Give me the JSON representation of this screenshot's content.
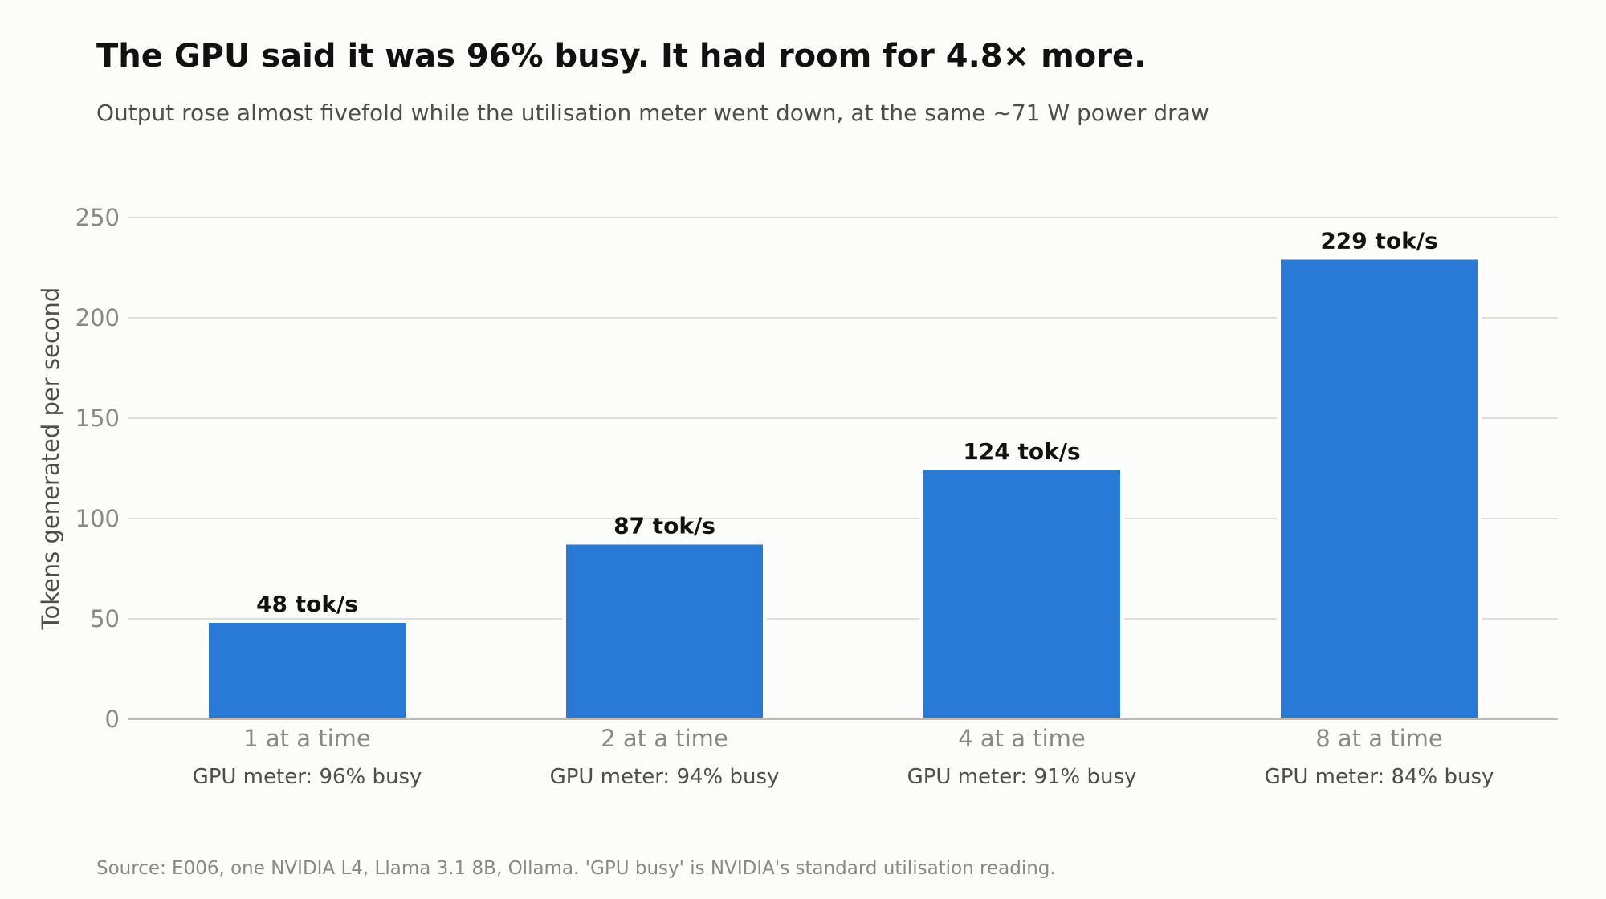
{
  "title": "The GPU said it was 96% busy. It had room for 4.8× more.",
  "subtitle": "Output rose almost fivefold while the utilisation meter went down, at the same ~71 W power draw",
  "source": "Source: E006, one NVIDIA L4, Llama 3.1 8B, Ollama. 'GPU busy' is NVIDIA's standard utilisation reading.",
  "chart_data": {
    "type": "bar",
    "ylabel": "Tokens generated per second",
    "ylim": [
      0,
      250
    ],
    "yticks": [
      0,
      50,
      100,
      150,
      200,
      250
    ],
    "grid": true,
    "categories": [
      "1 at a time",
      "2 at a time",
      "4 at a time",
      "8 at a time"
    ],
    "sublabels": [
      "GPU meter: 96% busy",
      "GPU meter: 94% busy",
      "GPU meter: 91% busy",
      "GPU meter: 84% busy"
    ],
    "values": [
      48,
      87,
      124,
      229
    ],
    "data_labels": [
      "48 tok/s",
      "87 tok/s",
      "124 tok/s",
      "229 tok/s"
    ],
    "colors": {
      "bar": "#2979d6",
      "grid": "#dddddd",
      "axis": "#bbbbbb",
      "tick_label": "#888888",
      "category_label": "#888888",
      "sublabel": "#4d4d4d",
      "data_label": "#111111",
      "ylabel": "#4d4d4d"
    }
  }
}
